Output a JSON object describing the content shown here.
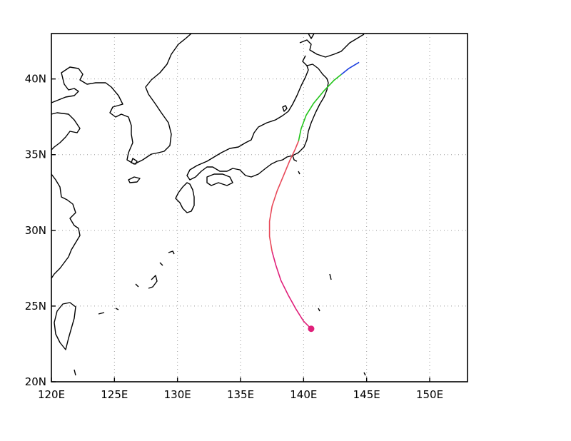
{
  "map": {
    "lon_range": [
      120,
      153
    ],
    "lat_range": [
      20,
      43
    ],
    "x_ticks": [
      {
        "value": 120,
        "label": "120E"
      },
      {
        "value": 125,
        "label": "125E"
      },
      {
        "value": 130,
        "label": "130E"
      },
      {
        "value": 135,
        "label": "135E"
      },
      {
        "value": 140,
        "label": "140E"
      },
      {
        "value": 145,
        "label": "145E"
      },
      {
        "value": 150,
        "label": "150E"
      }
    ],
    "y_ticks": [
      {
        "value": 20,
        "label": "20N"
      },
      {
        "value": 25,
        "label": "25N"
      },
      {
        "value": 30,
        "label": "30N"
      },
      {
        "value": 35,
        "label": "35N"
      },
      {
        "value": 40,
        "label": "40N"
      }
    ],
    "grid": true,
    "colors": {
      "coast": "#000000",
      "grid": "#9a9a9a",
      "frame": "#000000"
    }
  },
  "track": {
    "start_marker": {
      "lon": 140.6,
      "lat": 23.5,
      "color": "#e0207a"
    },
    "segments": [
      {
        "color": "#e0207a",
        "points": [
          [
            140.6,
            23.5
          ],
          [
            140.0,
            24.0
          ],
          [
            139.4,
            24.8
          ],
          [
            138.8,
            25.7
          ],
          [
            138.2,
            26.7
          ],
          [
            137.8,
            27.7
          ],
          [
            137.5,
            28.6
          ]
        ]
      },
      {
        "color": "#e84858",
        "points": [
          [
            137.5,
            28.6
          ],
          [
            137.3,
            29.6
          ],
          [
            137.3,
            30.6
          ],
          [
            137.5,
            31.6
          ],
          [
            137.9,
            32.6
          ],
          [
            138.4,
            33.6
          ],
          [
            138.9,
            34.6
          ],
          [
            139.3,
            35.3
          ],
          [
            139.6,
            35.9
          ]
        ]
      },
      {
        "color": "#22c41a",
        "points": [
          [
            139.6,
            35.9
          ],
          [
            139.8,
            36.7
          ],
          [
            140.2,
            37.6
          ],
          [
            140.8,
            38.4
          ],
          [
            141.6,
            39.2
          ],
          [
            142.4,
            39.9
          ],
          [
            143.0,
            40.3
          ]
        ]
      },
      {
        "color": "#1a3ee0",
        "points": [
          [
            143.0,
            40.3
          ],
          [
            143.6,
            40.7
          ],
          [
            144.4,
            41.1
          ]
        ]
      }
    ]
  }
}
